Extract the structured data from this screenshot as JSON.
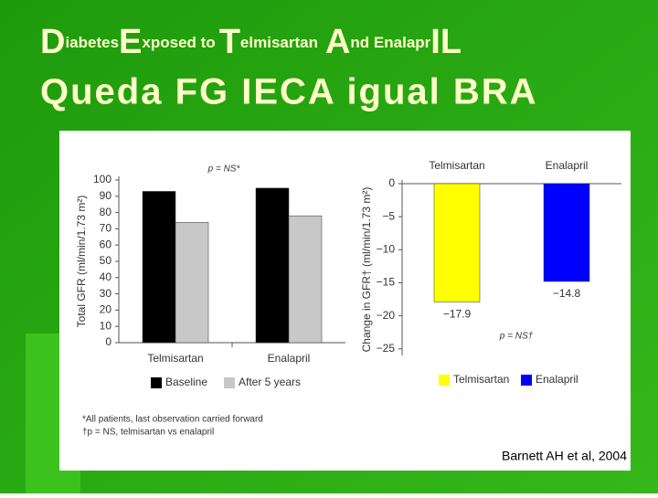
{
  "slide": {
    "title": [
      "D",
      "iabetes",
      "E",
      "xposed to",
      "T",
      "elmisartan",
      "A",
      "nd Enalapr",
      "IL"
    ],
    "subtitle": "Queda FG IECA igual BRA",
    "citation": "Barnett AH et al, 2004"
  },
  "chart_data": [
    {
      "type": "bar",
      "ylabel": "Total GFR (ml/min/1.73 m²)",
      "annotation": "p = NS*",
      "categories": [
        "Telmisartan",
        "Enalapril"
      ],
      "series": [
        {
          "name": "Baseline",
          "color": "#000000",
          "values": [
            93,
            95
          ]
        },
        {
          "name": "After 5 years",
          "color": "#c8c8c8",
          "values": [
            74,
            78
          ]
        }
      ],
      "ylim": [
        0,
        100
      ],
      "yticks": [
        0,
        10,
        20,
        30,
        40,
        50,
        60,
        70,
        80,
        90,
        100
      ],
      "footnotes": [
        "*All patients, last observation carried forward",
        "†p = NS, telmisartan vs enalapril"
      ]
    },
    {
      "type": "bar",
      "ylabel": "Change in GFR† (ml/min/1.73 m²)",
      "annotation": "p = NS†",
      "categories": [
        "Telmisartan",
        "Enalapril"
      ],
      "series": [
        {
          "name": "Telmisartan",
          "color": "#ffff00",
          "values": [
            -17.9,
            null
          ],
          "value_labels": [
            "−17.9",
            null
          ]
        },
        {
          "name": "Enalapril",
          "color": "#0000ff",
          "values": [
            null,
            -14.8
          ],
          "value_labels": [
            null,
            "−14.8"
          ]
        }
      ],
      "ylim": [
        -26,
        0
      ],
      "yticks": [
        0,
        {
          "value": -5,
          "label": "−5"
        },
        {
          "value": -10,
          "label": "−10"
        },
        {
          "value": -15,
          "label": "−15"
        },
        {
          "value": -20,
          "label": "−20"
        },
        {
          "value": -25,
          "label": "−25"
        }
      ]
    }
  ]
}
